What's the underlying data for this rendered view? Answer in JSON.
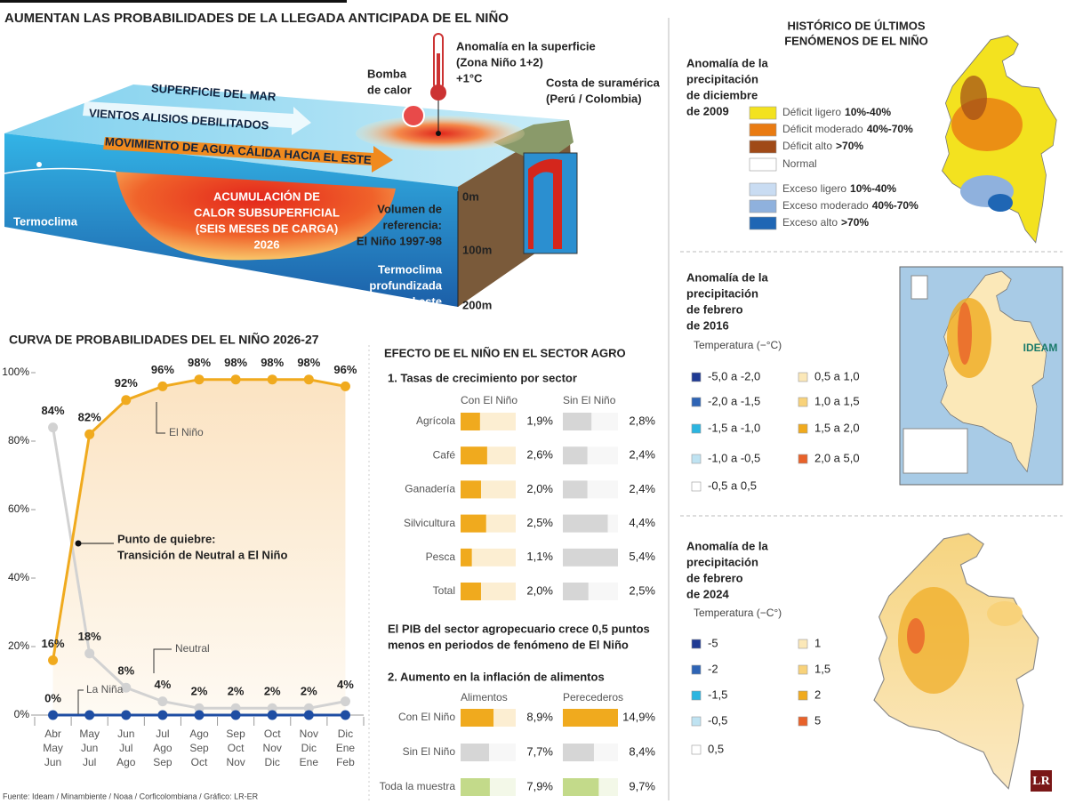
{
  "title": "AUMENTAN LAS PROBABILIDADES DE LA LLEGADA ANTICIPADA DE EL NIÑO",
  "diagram": {
    "sea_surface": "SUPERFICIE DEL MAR",
    "trade_winds": "VIENTOS ALISIOS DEBILITADOS",
    "warm_water": "MOVIMIENTO DE AGUA CÁLIDA HACIA EL ESTE",
    "heat_pump": [
      "Bomba",
      "de calor"
    ],
    "surface_anomaly": [
      "Anomalía en la superficie",
      "(Zona Niño 1+2)",
      "+1°C"
    ],
    "coast": [
      "Costa de suramérica",
      "(Perú / Colombia)"
    ],
    "thermocline": "Termoclima",
    "accumulation": [
      "ACUMULACIÓN DE",
      "CALOR SUBSUPERFICIAL",
      "(SEIS MESES DE CARGA)",
      "2026"
    ],
    "reference": [
      "Volumen de",
      "referencia:",
      "El Niño 1997-98"
    ],
    "deep_thermocline": [
      "Termoclima",
      "profundizada",
      "en el este"
    ],
    "depths": [
      "0m",
      "100m",
      "200m"
    ]
  },
  "chart_data": [
    {
      "type": "line",
      "title": "CURVA DE PROBABILIDADES DEL EL NIÑO 2026-27",
      "categories": [
        "Abr May Jun",
        "May Jun Jul",
        "Jun Jul Ago",
        "Jul Ago Sep",
        "Ago Sep Oct",
        "Sep Oct Nov",
        "Oct Nov Dic",
        "Nov Dic Ene",
        "Dic Ene Feb"
      ],
      "series": [
        {
          "name": "El Niño",
          "color": "#f0aa1e",
          "values": [
            16,
            82,
            92,
            96,
            98,
            98,
            98,
            98,
            96
          ],
          "value_labels": [
            "16%",
            "82%",
            "92%",
            "96%",
            "98%",
            "98%",
            "98%",
            "98%",
            "96%"
          ]
        },
        {
          "name": "Neutral",
          "color": "#d2d2d2",
          "values": [
            84,
            18,
            8,
            4,
            2,
            2,
            2,
            2,
            4
          ],
          "value_labels": [
            "84%",
            "18%",
            "8%",
            "4%",
            "2%",
            "2%",
            "2%",
            "2%",
            "4%"
          ]
        },
        {
          "name": "La Niña",
          "color": "#1f4ea3",
          "values": [
            0,
            0,
            0,
            0,
            0,
            0,
            0,
            0,
            0
          ],
          "value_labels": [
            "0%",
            null,
            null,
            null,
            null,
            null,
            null,
            null,
            null
          ]
        }
      ],
      "ylim": [
        0,
        100
      ],
      "yticks": [
        {
          "value": 0,
          "label": "0%"
        },
        {
          "value": 20,
          "label": "20%"
        },
        {
          "value": 40,
          "label": "40%"
        },
        {
          "value": 60,
          "label": "60%"
        },
        {
          "value": 80,
          "label": "80%"
        },
        {
          "value": 100,
          "label": "100%"
        }
      ],
      "annotation": [
        "Punto de quiebre:",
        "Transición de Neutral a El Niño"
      ]
    },
    {
      "type": "bar",
      "title": "1. Tasas de crecimiento por sector",
      "categories": [
        "Agrícola",
        "Café",
        "Ganadería",
        "Silvicultura",
        "Pesca",
        "Total"
      ],
      "series": [
        {
          "name": "Con El Niño",
          "color": "#f0aa1e",
          "values": [
            1.9,
            2.6,
            2.0,
            2.5,
            1.1,
            2.0
          ],
          "value_labels": [
            "1,9%",
            "2,6%",
            "2,0%",
            "2,5%",
            "1,1%",
            "2,0%"
          ]
        },
        {
          "name": "Sin El Niño",
          "color": "#d6d6d6",
          "values": [
            2.8,
            2.4,
            2.4,
            4.4,
            5.4,
            2.5
          ],
          "value_labels": [
            "2,8%",
            "2,4%",
            "2,4%",
            "4,4%",
            "5,4%",
            "2,5%"
          ]
        }
      ],
      "xlim": [
        0,
        5.4
      ]
    },
    {
      "type": "bar",
      "title": "2. Aumento en la inflación de alimentos",
      "categories": [
        "Con El Niño",
        "Sin El Niño",
        "Toda la muestra"
      ],
      "colors": [
        "#f0aa1e",
        "#d6d6d6",
        "#c3da8a"
      ],
      "series": [
        {
          "name": "Alimentos",
          "values": [
            8.9,
            7.7,
            7.9
          ],
          "value_labels": [
            "8,9%",
            "7,7%",
            "7,9%"
          ]
        },
        {
          "name": "Perecederos",
          "values": [
            14.9,
            8.4,
            9.7
          ],
          "value_labels": [
            "14,9%",
            "8,4%",
            "9,7%"
          ]
        }
      ],
      "xlim": [
        0,
        14.9
      ]
    }
  ],
  "agro": {
    "title": "EFECTO DE EL NIÑO EN EL SECTOR AGRO",
    "note": [
      "El PIB del sector agropecuario crece 0,5 puntos",
      "menos en periodos de fenómeno de El Niño"
    ]
  },
  "maps": {
    "title": [
      "HISTÓRICO DE ÚLTIMOS",
      "FENÓMENOS DE EL NIÑO"
    ],
    "panels": [
      {
        "title": [
          "Anomalía de la",
          "precipitación",
          "de diciembre",
          "de 2009"
        ],
        "legend": [
          {
            "name": "Déficit ligero",
            "range": "10%-40%",
            "color": "#f3e21f"
          },
          {
            "name": "Déficit moderado",
            "range": "40%-70%",
            "color": "#e97b12"
          },
          {
            "name": "Déficit alto",
            "range": ">70%",
            "color": "#a04a17"
          },
          {
            "name": "Normal",
            "color": "#ffffff"
          },
          {
            "name": "Exceso ligero",
            "range": "10%-40%",
            "color": "#c9dcf2"
          },
          {
            "name": "Exceso moderado",
            "range": "40%-70%",
            "color": "#8fb1dd"
          },
          {
            "name": "Exceso alto",
            "range": ">70%",
            "color": "#1f66b4"
          }
        ]
      },
      {
        "title": [
          "Anomalía de la",
          "precipitación",
          "de febrero",
          "de 2016"
        ],
        "unit": "Temperatura (−°C)",
        "logo": "IDEAM",
        "legend": [
          {
            "name": "-5,0 a -2,0",
            "color": "#1f3a93"
          },
          {
            "name": "-2,0 a -1,5",
            "color": "#2e64b5"
          },
          {
            "name": "-1,5 a -1,0",
            "color": "#2bb5e0"
          },
          {
            "name": "-1,0 a -0,5",
            "color": "#bfe3f2"
          },
          {
            "name": "-0,5 a 0,5",
            "color": "#ffffff"
          },
          {
            "name": "0,5 a 1,0",
            "color": "#fbe8b8"
          },
          {
            "name": "1,0 a 1,5",
            "color": "#f8d27a"
          },
          {
            "name": "1,5 a 2,0",
            "color": "#f0aa1e"
          },
          {
            "name": "2,0 a 5,0",
            "color": "#e8622a"
          }
        ]
      },
      {
        "title": [
          "Anomalía de la",
          "precipitación",
          "de febrero",
          "de 2024"
        ],
        "unit": "Temperatura (−C°)",
        "legend": [
          {
            "name": "-5",
            "color": "#1f3a93"
          },
          {
            "name": "-2",
            "color": "#2e64b5"
          },
          {
            "name": "-1,5",
            "color": "#2bb5e0"
          },
          {
            "name": "-0,5",
            "color": "#bfe3f2"
          },
          {
            "name": "0,5",
            "color": "#ffffff"
          },
          {
            "name": "1",
            "color": "#fbe8b8"
          },
          {
            "name": "1,5",
            "color": "#f8d27a"
          },
          {
            "name": "2",
            "color": "#f0aa1e"
          },
          {
            "name": "5",
            "color": "#e8622a"
          }
        ]
      }
    ]
  },
  "source": "Fuente: Ideam / Minambiente / Noaa / Corficolombiana / Gráfico: LR-ER",
  "logo": "LR"
}
